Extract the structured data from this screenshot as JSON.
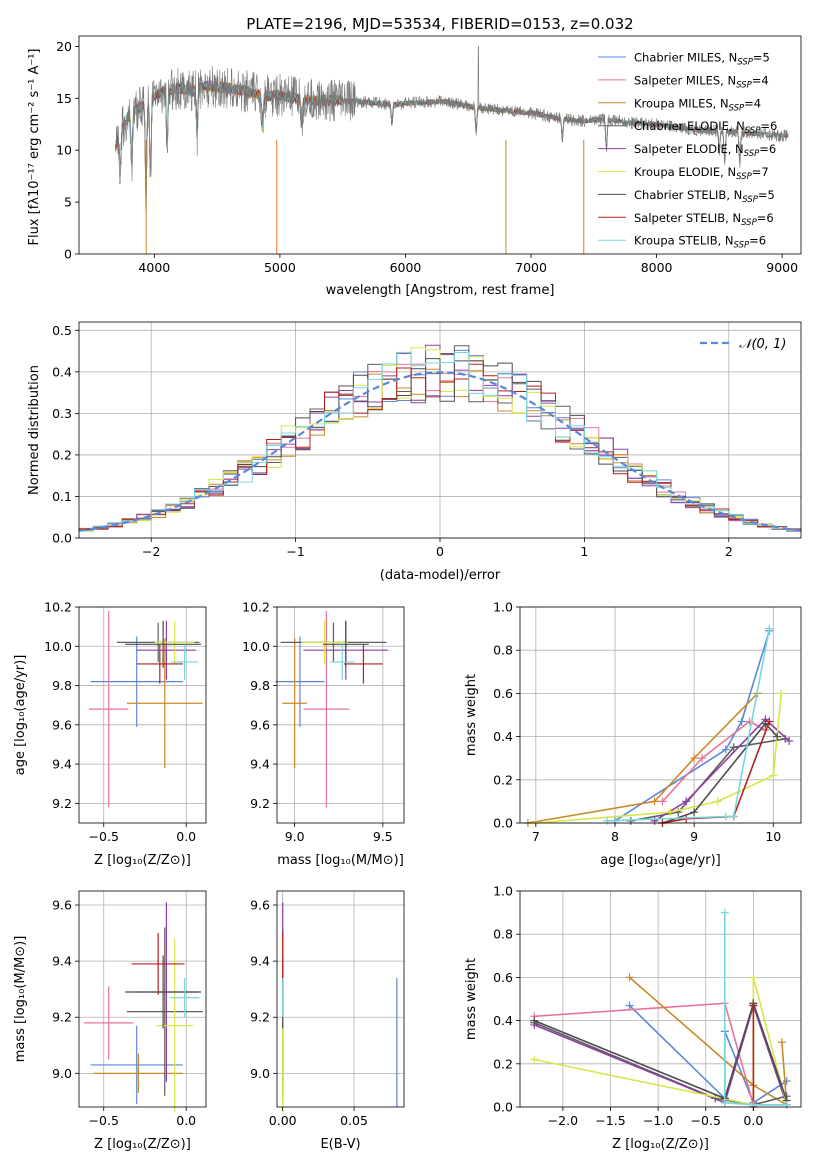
{
  "colors": [
    "#5a87dc",
    "#e8749a",
    "#c98a27",
    "#5f5f5f",
    "#8e3fa6",
    "#d9e64b",
    "#4d4d4d",
    "#b3201d",
    "#78d6dd"
  ],
  "chart_data": [
    {
      "id": "spectrum",
      "type": "line",
      "title": "PLATE=2196, MJD=53534, FIBERID=0153, z=0.032",
      "xlabel": "wavelength [Angstrom, rest frame]",
      "ylabel": "Flux [fλ10⁻¹⁷ erg cm⁻² s⁻¹ A⁻¹]",
      "xlim": [
        3400,
        9150
      ],
      "ylim": [
        0,
        21
      ],
      "xticks": [
        4000,
        5000,
        6000,
        7000,
        8000,
        9000
      ],
      "yticks": [
        0,
        5,
        10,
        15,
        20
      ],
      "legend_position": "top-right",
      "legend": [
        {
          "prefix": "Chabrier MILES, N",
          "sub": "SSP",
          "suffix": "=5"
        },
        {
          "prefix": "Salpeter MILES, N",
          "sub": "SSP",
          "suffix": "=4"
        },
        {
          "prefix": "Kroupa MILES, N",
          "sub": "SSP",
          "suffix": "=4"
        },
        {
          "prefix": "Chabrier ELODIE, N",
          "sub": "SSP",
          "suffix": "=6"
        },
        {
          "prefix": "Salpeter ELODIE, N",
          "sub": "SSP",
          "suffix": "=6"
        },
        {
          "prefix": "Kroupa ELODIE, N",
          "sub": "SSP",
          "suffix": "=7"
        },
        {
          "prefix": "Chabrier STELIB, N",
          "sub": "SSP",
          "suffix": "=5"
        },
        {
          "prefix": "Salpeter STELIB, N",
          "sub": "SSP",
          "suffix": "=6"
        },
        {
          "prefix": "Kroupa STELIB, N",
          "sub": "SSP",
          "suffix": "=6"
        }
      ],
      "continuum": [
        [
          3690,
          10.2
        ],
        [
          3720,
          11.5
        ],
        [
          3800,
          13.5
        ],
        [
          3900,
          14.2
        ],
        [
          3960,
          14.5
        ],
        [
          4000,
          15.2
        ],
        [
          4100,
          15.8
        ],
        [
          4200,
          16.0
        ],
        [
          4300,
          15.7
        ],
        [
          4400,
          16.2
        ],
        [
          4500,
          16.1
        ],
        [
          4700,
          15.8
        ],
        [
          4861,
          15.2
        ],
        [
          5000,
          15.3
        ],
        [
          5200,
          14.8
        ],
        [
          5400,
          14.8
        ],
        [
          5600,
          14.7
        ],
        [
          5900,
          14.4
        ],
        [
          6100,
          14.6
        ],
        [
          6300,
          14.7
        ],
        [
          6562,
          14.1
        ],
        [
          6800,
          13.8
        ],
        [
          7000,
          13.6
        ],
        [
          7200,
          13.1
        ],
        [
          7400,
          12.8
        ],
        [
          7600,
          13.0
        ],
        [
          7800,
          12.6
        ],
        [
          8000,
          12.5
        ],
        [
          8200,
          12.1
        ],
        [
          8400,
          11.9
        ],
        [
          8600,
          11.8
        ],
        [
          8800,
          11.6
        ],
        [
          9000,
          11.4
        ],
        [
          9050,
          11.4
        ]
      ],
      "absorption_lines": [
        [
          3727,
          4.5
        ],
        [
          3820,
          5.5
        ],
        [
          3934,
          9
        ],
        [
          3969,
          8
        ],
        [
          4102,
          6
        ],
        [
          4340,
          4.5
        ],
        [
          4861,
          3
        ],
        [
          5175,
          2.5
        ],
        [
          5892,
          2
        ],
        [
          6563,
          2.5
        ],
        [
          7250,
          2
        ],
        [
          7600,
          3
        ],
        [
          8500,
          2
        ],
        [
          8542,
          3
        ],
        [
          8662,
          3
        ]
      ],
      "data_spike": [
        6580,
        20.0
      ]
    },
    {
      "id": "residual_hist",
      "type": "line",
      "xlabel": "(data-model)/error",
      "ylabel": "Normed distribution",
      "xlim": [
        -2.5,
        2.5
      ],
      "ylim": [
        0,
        0.52
      ],
      "xticks": [
        -2,
        -1,
        0,
        1,
        2
      ],
      "yticks": [
        0.0,
        0.1,
        0.2,
        0.3,
        0.4,
        0.5
      ],
      "legend": "⁢𝒩(0, 1)",
      "legend_position": "top-right",
      "bin_width": 0.1,
      "bin_start": -2.5,
      "reference_curve": "gaussian(0,1)"
    },
    {
      "id": "z_age",
      "type": "scatter",
      "xlabel": "Z [log₁₀(Z/Z⊙)]",
      "ylabel": "age  [log₁₀(age/yr)]",
      "xlim": [
        -0.65,
        0.12
      ],
      "ylim": [
        9.1,
        10.2
      ],
      "xticks": [
        -0.5,
        0.0
      ],
      "yticks": [
        9.2,
        9.4,
        9.6,
        9.8,
        10.0,
        10.2
      ],
      "points": [
        {
          "x": -0.3,
          "xerr": 0.28,
          "y": 9.82,
          "yerr": 0.23
        },
        {
          "x": -0.47,
          "xerr": 0.12,
          "y": 9.68,
          "yerr": 0.5
        },
        {
          "x": -0.13,
          "xerr": 0.23,
          "y": 9.71,
          "yerr": 0.33
        },
        {
          "x": -0.17,
          "xerr": 0.25,
          "y": 10.02,
          "yerr": 0.1
        },
        {
          "x": -0.12,
          "xerr": 0.18,
          "y": 9.98,
          "yerr": 0.15
        },
        {
          "x": -0.07,
          "xerr": 0.12,
          "y": 10.02,
          "yerr": 0.11
        },
        {
          "x": -0.14,
          "xerr": 0.23,
          "y": 10.01,
          "yerr": 0.12
        },
        {
          "x": -0.16,
          "xerr": 0.14,
          "y": 9.91,
          "yerr": 0.1
        },
        {
          "x": -0.01,
          "xerr": 0.08,
          "y": 9.92,
          "yerr": 0.09
        }
      ]
    },
    {
      "id": "mass_age",
      "type": "scatter",
      "xlabel": "mass [log₁₀(M/M⊙)]",
      "ylabel": "",
      "xlim": [
        8.9,
        9.62
      ],
      "ylim": [
        9.1,
        10.2
      ],
      "xticks": [
        9.0,
        9.5
      ],
      "yticks": [
        9.2,
        9.4,
        9.6,
        9.8,
        10.0,
        10.2
      ],
      "points": [
        {
          "x": 9.03,
          "xerr": 0.14,
          "y": 9.82,
          "yerr": 0.23
        },
        {
          "x": 9.18,
          "xerr": 0.13,
          "y": 9.68,
          "yerr": 0.5
        },
        {
          "x": 9.0,
          "xerr": 0.07,
          "y": 9.71,
          "yerr": 0.33
        },
        {
          "x": 9.22,
          "xerr": 0.3,
          "y": 10.02,
          "yerr": 0.1
        },
        {
          "x": 9.29,
          "xerr": 0.24,
          "y": 9.98,
          "yerr": 0.15
        },
        {
          "x": 9.17,
          "xerr": 0.13,
          "y": 10.02,
          "yerr": 0.11
        },
        {
          "x": 9.29,
          "xerr": 0.13,
          "y": 10.01,
          "yerr": 0.12
        },
        {
          "x": 9.39,
          "xerr": 0.11,
          "y": 9.91,
          "yerr": 0.1
        },
        {
          "x": 9.27,
          "xerr": 0.07,
          "y": 9.92,
          "yerr": 0.09
        }
      ]
    },
    {
      "id": "age_weight",
      "type": "line",
      "xlabel": "age  [log₁₀(age/yr)]",
      "ylabel": "mass weight",
      "xlim": [
        6.8,
        10.35
      ],
      "ylim": [
        0,
        1.0
      ],
      "xticks": [
        7,
        8,
        9,
        10
      ],
      "yticks": [
        0.0,
        0.2,
        0.4,
        0.6,
        0.8,
        1.0
      ],
      "series": [
        {
          "x": [
            8.0,
            9.4,
            9.6,
            9.95
          ],
          "y": [
            0.01,
            0.34,
            0.47,
            0.89
          ]
        },
        {
          "x": [
            8.6,
            9.1,
            9.7,
            9.9
          ],
          "y": [
            0.1,
            0.3,
            0.47,
            0.43
          ]
        },
        {
          "x": [
            6.9,
            8.5,
            9.0,
            9.8
          ],
          "y": [
            0.0,
            0.1,
            0.3,
            0.6
          ]
        },
        {
          "x": [
            8.2,
            8.8,
            9.5,
            10.15
          ],
          "y": [
            0.01,
            0.05,
            0.35,
            0.39
          ]
        },
        {
          "x": [
            8.5,
            8.9,
            9.9,
            10.2
          ],
          "y": [
            0.01,
            0.1,
            0.48,
            0.38
          ]
        },
        {
          "x": [
            7.0,
            8.7,
            9.3,
            10.0,
            10.1
          ],
          "y": [
            0.0,
            0.05,
            0.1,
            0.22,
            0.6
          ]
        },
        {
          "x": [
            8.6,
            9.0,
            9.9,
            10.05
          ],
          "y": [
            0.0,
            0.05,
            0.46,
            0.4
          ]
        },
        {
          "x": [
            8.6,
            8.9,
            9.5,
            9.95
          ],
          "y": [
            0.0,
            0.02,
            0.03,
            0.47
          ]
        },
        {
          "x": [
            7.9,
            9.4,
            9.5,
            9.95
          ],
          "y": [
            0.01,
            0.03,
            0.03,
            0.9
          ]
        }
      ]
    },
    {
      "id": "z_mass",
      "type": "scatter",
      "xlabel": "Z [log₁₀(Z/Z⊙)]",
      "ylabel": "mass [log₁₀(M/M⊙)]",
      "xlim": [
        -0.65,
        0.12
      ],
      "ylim": [
        8.88,
        9.65
      ],
      "xticks": [
        -0.5,
        0.0
      ],
      "yticks": [
        9.0,
        9.2,
        9.4,
        9.6
      ],
      "points": [
        {
          "x": -0.3,
          "xerr": 0.28,
          "y": 9.03,
          "yerr": 0.14
        },
        {
          "x": -0.47,
          "xerr": 0.15,
          "y": 9.18,
          "yerr": 0.13
        },
        {
          "x": -0.29,
          "xerr": 0.27,
          "y": 9.0,
          "yerr": 0.07
        },
        {
          "x": -0.13,
          "xerr": 0.23,
          "y": 9.22,
          "yerr": 0.3
        },
        {
          "x": -0.12,
          "xerr": 0.19,
          "y": 9.29,
          "yerr": 0.32
        },
        {
          "x": -0.07,
          "xerr": 0.11,
          "y": 9.17,
          "yerr": 0.31
        },
        {
          "x": -0.14,
          "xerr": 0.23,
          "y": 9.29,
          "yerr": 0.13
        },
        {
          "x": -0.17,
          "xerr": 0.16,
          "y": 9.39,
          "yerr": 0.11
        },
        {
          "x": -0.01,
          "xerr": 0.09,
          "y": 9.27,
          "yerr": 0.07
        }
      ]
    },
    {
      "id": "ebv_mass",
      "type": "scatter",
      "xlabel": "E(B-V)",
      "ylabel": "",
      "xlim": [
        -0.004,
        0.085
      ],
      "ylim": [
        8.88,
        9.65
      ],
      "xticks": [
        0.0,
        0.05
      ],
      "yticks": [
        9.0,
        9.2,
        9.4,
        9.6
      ],
      "points": [
        {
          "x": 0.08,
          "y": 9.11,
          "yerr": 0.23
        },
        {
          "x": 0.0,
          "y": 9.18,
          "yerr": 0.13
        },
        {
          "x": 0.0,
          "y": 9.0,
          "yerr": 0.1
        },
        {
          "x": 0.0,
          "y": 9.22,
          "yerr": 0.3
        },
        {
          "x": 0.0,
          "y": 9.29,
          "yerr": 0.32
        },
        {
          "x": 0.0,
          "y": 9.17,
          "yerr": 0.31
        },
        {
          "x": 0.0,
          "y": 9.29,
          "yerr": 0.13
        },
        {
          "x": 0.0,
          "y": 9.39,
          "yerr": 0.11
        },
        {
          "x": 0.0,
          "y": 9.27,
          "yerr": 0.07
        }
      ]
    },
    {
      "id": "z_weight",
      "type": "line",
      "xlabel": "Z [log₁₀(Z/Z⊙)]",
      "ylabel": "mass weight",
      "xlim": [
        -2.45,
        0.5
      ],
      "ylim": [
        0,
        1.0
      ],
      "xticks": [
        -2.0,
        -1.5,
        -1.0,
        -0.5,
        0.0
      ],
      "yticks": [
        0.0,
        0.2,
        0.4,
        0.6,
        0.8,
        1.0
      ],
      "series": [
        {
          "x": [
            -1.3,
            -0.3,
            -0.3,
            0.0,
            0.35
          ],
          "y": [
            0.47,
            0.04,
            0.35,
            0.02,
            0.12
          ]
        },
        {
          "x": [
            -2.3,
            -0.3,
            0.0,
            0.35
          ],
          "y": [
            0.42,
            0.48,
            0.01,
            0.01
          ]
        },
        {
          "x": [
            -1.3,
            0.0,
            0.35,
            0.3
          ],
          "y": [
            0.6,
            0.1,
            0.01,
            0.3
          ]
        },
        {
          "x": [
            -2.3,
            -0.4,
            0.0,
            0.35
          ],
          "y": [
            0.39,
            0.04,
            0.01,
            0.05
          ]
        },
        {
          "x": [
            -2.3,
            -0.3,
            0.0,
            0.35,
            0.0
          ],
          "y": [
            0.38,
            0.02,
            0.47,
            0.01,
            0.47
          ]
        },
        {
          "x": [
            -2.3,
            0.0,
            0.0,
            0.35
          ],
          "y": [
            0.22,
            0.01,
            0.6,
            0.01
          ]
        },
        {
          "x": [
            -2.3,
            -0.3,
            0.0,
            0.35,
            0.0
          ],
          "y": [
            0.4,
            0.04,
            0.48,
            0.03,
            0.48
          ]
        },
        {
          "x": [
            0.0,
            0.0
          ],
          "y": [
            0.0,
            0.47
          ]
        },
        {
          "x": [
            -0.3,
            -0.3,
            0.0,
            0.35
          ],
          "y": [
            0.9,
            0.02,
            0.01,
            0.01
          ]
        }
      ]
    }
  ]
}
